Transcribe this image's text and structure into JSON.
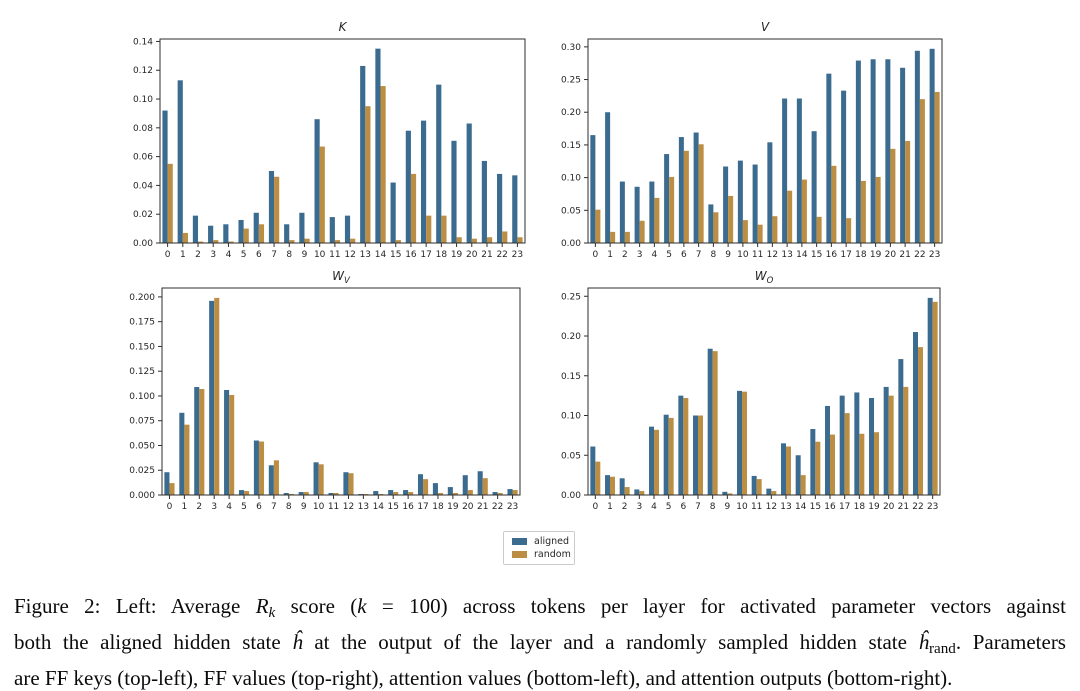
{
  "colors": {
    "aligned": "#3b6c90",
    "random": "#bc8e44",
    "spine": "#2e2e2e",
    "tick_text": "#262626"
  },
  "legend": {
    "position": "below-charts-center",
    "items": [
      {
        "label": "aligned",
        "color": "#3b6c90"
      },
      {
        "label": "random",
        "color": "#bc8e44"
      }
    ]
  },
  "chart_data": [
    {
      "type": "bar",
      "title_main": "K",
      "title_sub": "",
      "xlabel": "",
      "ylabel": "",
      "grid": false,
      "categories": [
        "0",
        "1",
        "2",
        "3",
        "4",
        "5",
        "6",
        "7",
        "8",
        "9",
        "10",
        "11",
        "12",
        "13",
        "14",
        "15",
        "16",
        "17",
        "18",
        "19",
        "20",
        "21",
        "22",
        "23"
      ],
      "yticks": [
        0.0,
        0.02,
        0.04,
        0.06,
        0.08,
        0.1,
        0.12,
        0.14
      ],
      "ytick_decimals": 2,
      "ylim": [
        0,
        0.1417
      ],
      "series": [
        {
          "name": "aligned",
          "color": "#3b6c90",
          "values": [
            0.092,
            0.113,
            0.019,
            0.012,
            0.013,
            0.016,
            0.021,
            0.05,
            0.013,
            0.021,
            0.086,
            0.018,
            0.019,
            0.123,
            0.135,
            0.042,
            0.078,
            0.085,
            0.11,
            0.071,
            0.083,
            0.057,
            0.048,
            0.047
          ]
        },
        {
          "name": "random",
          "color": "#bc8e44",
          "values": [
            0.055,
            0.007,
            0.001,
            0.002,
            0.001,
            0.01,
            0.013,
            0.046,
            0.002,
            0.003,
            0.067,
            0.002,
            0.003,
            0.095,
            0.109,
            0.002,
            0.048,
            0.019,
            0.019,
            0.004,
            0.003,
            0.004,
            0.008,
            0.004
          ]
        }
      ]
    },
    {
      "type": "bar",
      "title_main": "V",
      "title_sub": "",
      "xlabel": "",
      "ylabel": "",
      "grid": false,
      "categories": [
        "0",
        "1",
        "2",
        "3",
        "4",
        "5",
        "6",
        "7",
        "8",
        "9",
        "10",
        "11",
        "12",
        "13",
        "14",
        "15",
        "16",
        "17",
        "18",
        "19",
        "20",
        "21",
        "22",
        "23"
      ],
      "yticks": [
        0.0,
        0.05,
        0.1,
        0.15,
        0.2,
        0.25,
        0.3
      ],
      "ytick_decimals": 2,
      "ylim": [
        0,
        0.312
      ],
      "series": [
        {
          "name": "aligned",
          "color": "#3b6c90",
          "values": [
            0.165,
            0.2,
            0.094,
            0.086,
            0.094,
            0.136,
            0.162,
            0.169,
            0.059,
            0.117,
            0.126,
            0.12,
            0.154,
            0.221,
            0.221,
            0.171,
            0.259,
            0.233,
            0.279,
            0.281,
            0.281,
            0.268,
            0.294,
            0.297
          ]
        },
        {
          "name": "random",
          "color": "#bc8e44",
          "values": [
            0.051,
            0.017,
            0.017,
            0.034,
            0.069,
            0.101,
            0.141,
            0.151,
            0.047,
            0.072,
            0.035,
            0.028,
            0.041,
            0.08,
            0.097,
            0.04,
            0.118,
            0.038,
            0.095,
            0.101,
            0.144,
            0.156,
            0.22,
            0.231
          ]
        }
      ]
    },
    {
      "type": "bar",
      "title_main": "W",
      "title_sub": "V",
      "xlabel": "",
      "ylabel": "",
      "grid": false,
      "categories": [
        "0",
        "1",
        "2",
        "3",
        "4",
        "5",
        "6",
        "7",
        "8",
        "9",
        "10",
        "11",
        "12",
        "13",
        "14",
        "15",
        "16",
        "17",
        "18",
        "19",
        "20",
        "21",
        "22",
        "23"
      ],
      "yticks": [
        0.0,
        0.025,
        0.05,
        0.075,
        0.1,
        0.125,
        0.15,
        0.175,
        0.2
      ],
      "ytick_decimals": 3,
      "ylim": [
        0,
        0.209
      ],
      "series": [
        {
          "name": "aligned",
          "color": "#3b6c90",
          "values": [
            0.023,
            0.083,
            0.109,
            0.196,
            0.106,
            0.005,
            0.055,
            0.03,
            0.002,
            0.003,
            0.033,
            0.002,
            0.023,
            0.001,
            0.004,
            0.005,
            0.005,
            0.021,
            0.012,
            0.008,
            0.02,
            0.024,
            0.003,
            0.006
          ]
        },
        {
          "name": "random",
          "color": "#bc8e44",
          "values": [
            0.012,
            0.071,
            0.107,
            0.199,
            0.101,
            0.004,
            0.054,
            0.035,
            0.001,
            0.003,
            0.031,
            0.002,
            0.022,
            0.001,
            0.001,
            0.003,
            0.003,
            0.016,
            0.002,
            0.002,
            0.005,
            0.017,
            0.002,
            0.005
          ]
        }
      ]
    },
    {
      "type": "bar",
      "title_main": "W",
      "title_sub": "O",
      "xlabel": "",
      "ylabel": "",
      "grid": false,
      "categories": [
        "0",
        "1",
        "2",
        "3",
        "4",
        "5",
        "6",
        "7",
        "8",
        "9",
        "10",
        "11",
        "12",
        "13",
        "14",
        "15",
        "16",
        "17",
        "18",
        "19",
        "20",
        "21",
        "22",
        "23"
      ],
      "yticks": [
        0.0,
        0.05,
        0.1,
        0.15,
        0.2,
        0.25
      ],
      "ytick_decimals": 2,
      "ylim": [
        0,
        0.2604
      ],
      "series": [
        {
          "name": "aligned",
          "color": "#3b6c90",
          "values": [
            0.061,
            0.025,
            0.021,
            0.007,
            0.086,
            0.101,
            0.125,
            0.1,
            0.184,
            0.004,
            0.131,
            0.024,
            0.008,
            0.065,
            0.05,
            0.083,
            0.112,
            0.125,
            0.129,
            0.122,
            0.136,
            0.171,
            0.205,
            0.248
          ]
        },
        {
          "name": "random",
          "color": "#bc8e44",
          "values": [
            0.042,
            0.023,
            0.01,
            0.005,
            0.082,
            0.097,
            0.122,
            0.1,
            0.181,
            0.002,
            0.13,
            0.02,
            0.005,
            0.061,
            0.025,
            0.067,
            0.076,
            0.103,
            0.077,
            0.079,
            0.125,
            0.136,
            0.186,
            0.243
          ]
        }
      ]
    }
  ],
  "caption": {
    "lines": [
      [
        {
          "t": "Figure 2: Left: Average ",
          "s": "n"
        },
        {
          "t": "R",
          "s": "i"
        },
        {
          "t": "k",
          "s": "isub"
        },
        {
          "t": " score (",
          "s": "n"
        },
        {
          "t": "k",
          "s": "i"
        },
        {
          "t": " = 100) across tokens per layer for activated parameter vectors against",
          "s": "n"
        }
      ],
      [
        {
          "t": "both the aligned hidden state ",
          "s": "n"
        },
        {
          "t": "ĥ",
          "s": "i"
        },
        {
          "t": " at the output of the layer and a randomly sampled hidden state ",
          "s": "n"
        },
        {
          "t": "ĥ",
          "s": "i"
        },
        {
          "t": "rand",
          "s": "sub"
        },
        {
          "t": ". Parameters",
          "s": "n"
        }
      ],
      [
        {
          "t": "are FF keys (top-left), FF values (top-right), attention values (bottom-left), and attention outputs (bottom-right).",
          "s": "n"
        }
      ]
    ]
  }
}
